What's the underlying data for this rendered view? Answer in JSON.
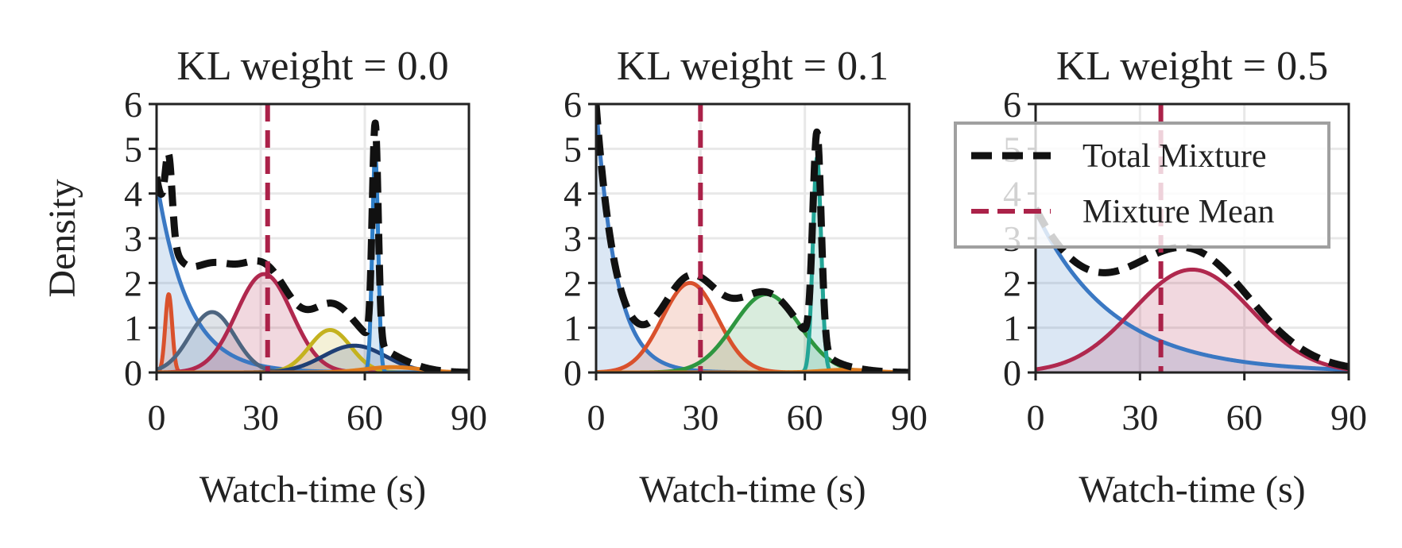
{
  "chart_data": [
    {
      "type": "area",
      "title": "KL weight = 0.0",
      "xlabel": "Watch-time (s)",
      "ylabel": "Density",
      "xlim": [
        0,
        90
      ],
      "ylim": [
        0,
        6
      ],
      "xticks": [
        "0",
        "30",
        "60",
        "90"
      ],
      "yticks": [
        "0",
        "1",
        "2",
        "3",
        "4",
        "5",
        "6"
      ],
      "grid": true,
      "mixture_mean": 32,
      "components": [
        {
          "kind": "exponential",
          "peak": 4.3,
          "scale": 9,
          "color": "#3a78c3"
        },
        {
          "kind": "gaussian",
          "mu": 3.5,
          "sigma": 1.0,
          "peak": 1.75,
          "color": "#d9512c"
        },
        {
          "kind": "gaussian",
          "mu": 16,
          "sigma": 6.5,
          "peak": 1.35,
          "color": "#4d6580"
        },
        {
          "kind": "gaussian",
          "mu": 31,
          "sigma": 8,
          "peak": 2.2,
          "color": "#b0284e"
        },
        {
          "kind": "gaussian",
          "mu": 50,
          "sigma": 6,
          "peak": 0.95,
          "color": "#c4b21f"
        },
        {
          "kind": "gaussian",
          "mu": 57,
          "sigma": 9,
          "peak": 0.6,
          "color": "#1f3f75"
        },
        {
          "kind": "gaussian",
          "mu": 63,
          "sigma": 0.85,
          "peak": 4.9,
          "color": "#2f7fc8"
        },
        {
          "kind": "gaussian",
          "mu": 68,
          "sigma": 8,
          "peak": 0.12,
          "color": "#e07b1c"
        }
      ]
    },
    {
      "type": "area",
      "title": "KL weight = 0.1",
      "xlabel": "Watch-time (s)",
      "xlim": [
        0,
        90
      ],
      "ylim": [
        0,
        6
      ],
      "xticks": [
        "0",
        "30",
        "60",
        "90"
      ],
      "yticks": [
        "0",
        "1",
        "2",
        "3",
        "4",
        "5",
        "6"
      ],
      "grid": true,
      "mixture_mean": 30,
      "components": [
        {
          "kind": "exponential",
          "peak": 6.0,
          "scale": 5.8,
          "color": "#3a78c3"
        },
        {
          "kind": "gaussian",
          "mu": 27,
          "sigma": 8,
          "peak": 2.0,
          "color": "#d9512c"
        },
        {
          "kind": "gaussian",
          "mu": 49,
          "sigma": 9.5,
          "peak": 1.75,
          "color": "#2e9640"
        },
        {
          "kind": "gaussian",
          "mu": 63.5,
          "sigma": 1.2,
          "peak": 4.8,
          "color": "#23a596"
        },
        {
          "kind": "gaussian",
          "mu": 72,
          "sigma": 7,
          "peak": 0.06,
          "color": "#e07b1c"
        }
      ]
    },
    {
      "type": "area",
      "title": "KL weight = 0.5",
      "xlabel": "Watch-time (s)",
      "xlim": [
        0,
        90
      ],
      "ylim": [
        0,
        6
      ],
      "xticks": [
        "0",
        "30",
        "60",
        "90"
      ],
      "yticks": [
        "0",
        "1",
        "2",
        "3",
        "4",
        "5",
        "6"
      ],
      "grid": true,
      "mixture_mean": 36,
      "legend_position": "upper-right",
      "legend": [
        "Total Mixture",
        "Mixture Mean"
      ],
      "components": [
        {
          "kind": "exponential",
          "peak": 3.6,
          "scale": 22,
          "color": "#3a78c3"
        },
        {
          "kind": "gaussian",
          "mu": 45,
          "sigma": 17,
          "peak": 2.3,
          "color": "#b0284e"
        }
      ]
    }
  ],
  "colors": {
    "total_mixture": "#111111",
    "mixture_mean": "#ab2249",
    "grid": "#e8e8e8"
  }
}
